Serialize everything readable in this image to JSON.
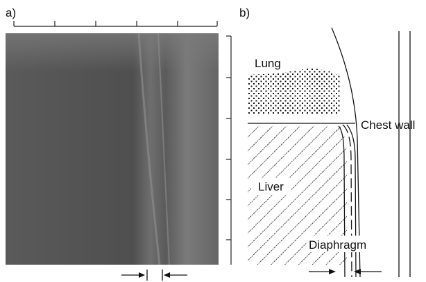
{
  "panels": {
    "a": {
      "label": "a)"
    },
    "b": {
      "label": "b)",
      "labels": {
        "lung": "Lung",
        "chest_wall": "Chest wall",
        "liver": "Liver",
        "diaphragm": "Diaphragm"
      }
    }
  }
}
